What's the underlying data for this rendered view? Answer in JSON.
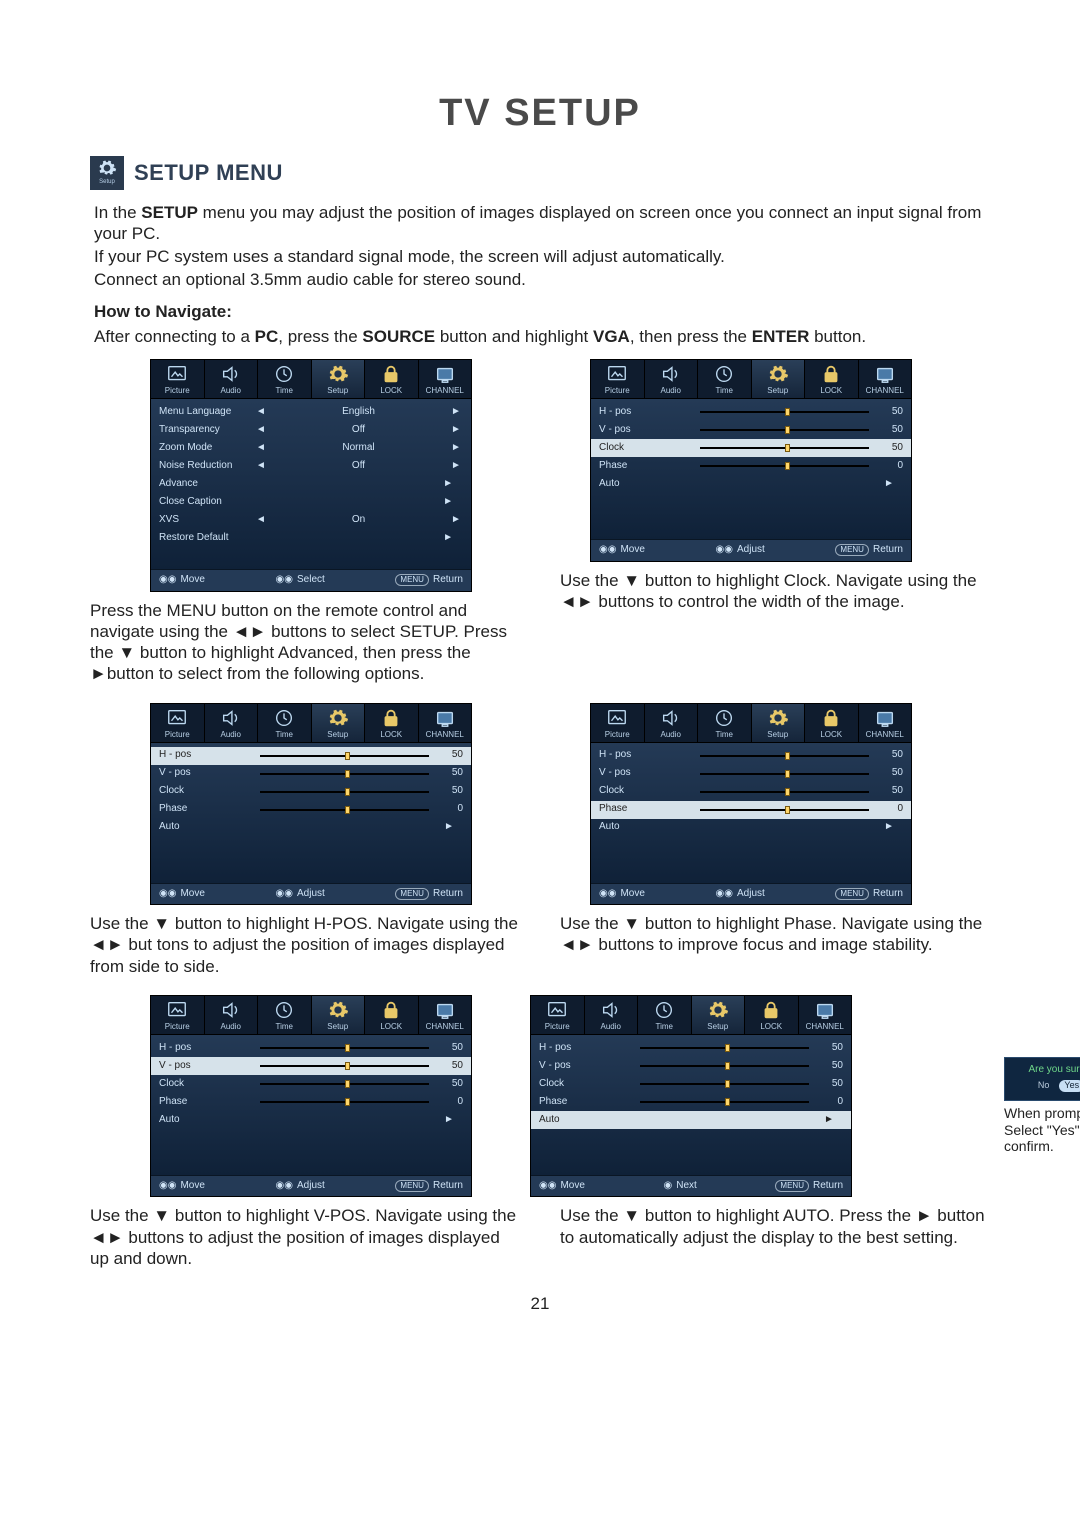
{
  "page": {
    "title": "TV SETUP",
    "section_title": "SETUP MENU",
    "gear_label": "Setup",
    "page_number": "21"
  },
  "intro": {
    "p1a": "In the ",
    "p1b": "SETUP",
    "p1c": " menu you may adjust the position of images displayed on screen once you connect an input signal from your PC.",
    "p2": "If your PC system uses a standard signal mode, the screen will adjust automatically.",
    "p3": "Connect an optional 3.5mm audio cable for stereo sound.",
    "howto": "How to Navigate:",
    "after_a": "After connecting to a ",
    "after_b": "PC",
    "after_c": ", press the ",
    "after_d": "SOURCE",
    "after_e": " button and highlight ",
    "after_f": "VGA",
    "after_g": ", then press the ",
    "after_h": "ENTER",
    "after_i": " button."
  },
  "tabs": [
    "Picture",
    "Audio",
    "Time",
    "Setup",
    "LOCK",
    "CHANNEL"
  ],
  "glyph": {
    "left": "◄",
    "right": "►",
    "down": "▼",
    "up": "▲",
    "eye": "◉◉",
    "menu": "MENU"
  },
  "footer": {
    "move": "Move",
    "select": "Select",
    "adjust": "Adjust",
    "next": "Next",
    "return": "Return"
  },
  "confirm": {
    "q": "Are you sure ?",
    "no": "No",
    "yes": "Yes",
    "caption": "When prompted, Select \"Yes\" to confirm."
  },
  "colors": {
    "osd_bg_top": "#243a56",
    "osd_bg_bot": "#0f2138",
    "hl_bg": "#d6e2ea",
    "accent": "#6fd88a",
    "knob": "#ffd76b"
  },
  "osd1": {
    "rows": [
      {
        "label": "Menu Language",
        "type": "opt",
        "val": "English"
      },
      {
        "label": "Transparency",
        "type": "opt",
        "val": "Off"
      },
      {
        "label": "Zoom Mode",
        "type": "opt",
        "val": "Normal"
      },
      {
        "label": "Noise Reduction",
        "type": "opt",
        "val": "Off"
      },
      {
        "label": "Advance",
        "type": "arrow"
      },
      {
        "label": "Close Caption",
        "type": "arrow"
      },
      {
        "label": "XVS",
        "type": "opt",
        "val": "On"
      },
      {
        "label": "Restore Default",
        "type": "arrow"
      }
    ],
    "footer": [
      "move",
      "select",
      "return"
    ],
    "caption": "Press the MENU button on the remote control and navigate using the ◄► buttons to select SETUP. Press the ▼ button to highlight Advanced, then press the ►button to select from the following options."
  },
  "osd_clock": {
    "rows": [
      {
        "label": "H - pos",
        "type": "slider",
        "num": "50",
        "pos": 50
      },
      {
        "label": "V - pos",
        "type": "slider",
        "num": "50",
        "pos": 50
      },
      {
        "label": "Clock",
        "type": "slider",
        "num": "50",
        "pos": 50,
        "hl": true
      },
      {
        "label": "Phase",
        "type": "slider",
        "num": "0",
        "pos": 50
      },
      {
        "label": "Auto",
        "type": "arrowonly"
      }
    ],
    "footer": [
      "move",
      "adjust",
      "return"
    ],
    "caption": "Use the ▼ button to highlight Clock. Navigate using the ◄► buttons to control the width of the image."
  },
  "osd_hpos": {
    "rows": [
      {
        "label": "H - pos",
        "type": "slider",
        "num": "50",
        "pos": 50,
        "hl": true
      },
      {
        "label": "V - pos",
        "type": "slider",
        "num": "50",
        "pos": 50
      },
      {
        "label": "Clock",
        "type": "slider",
        "num": "50",
        "pos": 50
      },
      {
        "label": "Phase",
        "type": "slider",
        "num": "0",
        "pos": 50
      },
      {
        "label": "Auto",
        "type": "arrowonly"
      }
    ],
    "footer": [
      "move",
      "adjust",
      "return"
    ],
    "caption": "Use the ▼ button to highlight H-POS. Navigate using the ◄► but tons to adjust the position of images displayed from side to side."
  },
  "osd_phase": {
    "rows": [
      {
        "label": "H - pos",
        "type": "slider",
        "num": "50",
        "pos": 50
      },
      {
        "label": "V - pos",
        "type": "slider",
        "num": "50",
        "pos": 50
      },
      {
        "label": "Clock",
        "type": "slider",
        "num": "50",
        "pos": 50
      },
      {
        "label": "Phase",
        "type": "slider",
        "num": "0",
        "pos": 50,
        "hl": true
      },
      {
        "label": "Auto",
        "type": "arrowonly"
      }
    ],
    "footer": [
      "move",
      "adjust",
      "return"
    ],
    "caption": "Use the ▼ button to highlight Phase. Navigate using the ◄► buttons to improve focus and image stability."
  },
  "osd_vpos": {
    "rows": [
      {
        "label": "H - pos",
        "type": "slider",
        "num": "50",
        "pos": 50
      },
      {
        "label": "V - pos",
        "type": "slider",
        "num": "50",
        "pos": 50,
        "hl": true
      },
      {
        "label": "Clock",
        "type": "slider",
        "num": "50",
        "pos": 50
      },
      {
        "label": "Phase",
        "type": "slider",
        "num": "0",
        "pos": 50
      },
      {
        "label": "Auto",
        "type": "arrowonly"
      }
    ],
    "footer": [
      "move",
      "adjust",
      "return"
    ],
    "caption": "Use the ▼ button to highlight V-POS. Navigate using the ◄► buttons to adjust the position of images displayed up and down."
  },
  "osd_auto": {
    "rows": [
      {
        "label": "H - pos",
        "type": "slider",
        "num": "50",
        "pos": 50
      },
      {
        "label": "V - pos",
        "type": "slider",
        "num": "50",
        "pos": 50
      },
      {
        "label": "Clock",
        "type": "slider",
        "num": "50",
        "pos": 50
      },
      {
        "label": "Phase",
        "type": "slider",
        "num": "0",
        "pos": 50
      },
      {
        "label": "Auto",
        "type": "arrowonly",
        "hl": true
      }
    ],
    "footer": [
      "move",
      "next",
      "return"
    ],
    "caption": "Use the ▼ button to highlight AUTO. Press the ► button to automatically adjust the display to the best setting.",
    "confirm": true
  }
}
